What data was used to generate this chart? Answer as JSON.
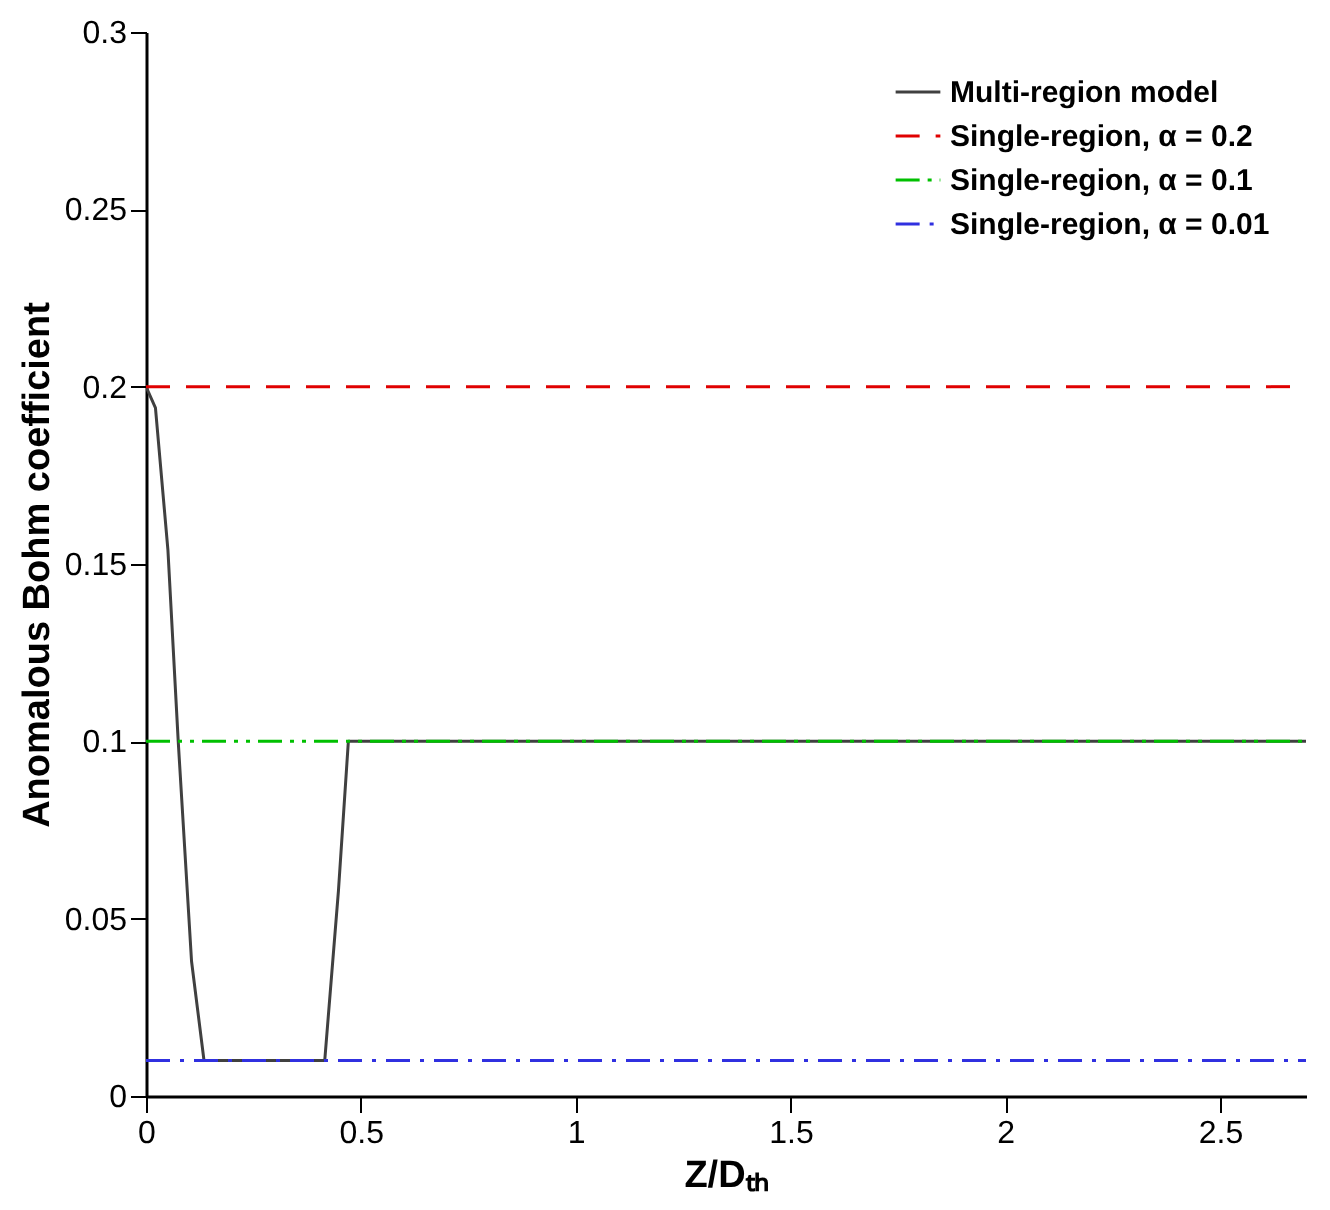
{
  "chart_data": {
    "type": "line",
    "xlabel": "Z/Dₜₕ",
    "ylabel": "Anomalous Bohm coefficient",
    "xlim": [
      0,
      2.7
    ],
    "ylim": [
      0,
      0.3
    ],
    "xticks": [
      0,
      0.5,
      1,
      1.5,
      2,
      2.5
    ],
    "yticks": [
      0,
      0.05,
      0.1,
      0.15,
      0.2,
      0.25,
      0.3
    ],
    "grid": false,
    "legend": "top right",
    "marker": "none",
    "series": [
      {
        "name": "Multi-region model",
        "color": "#404040",
        "line_style": "solid",
        "x": [
          0,
          0.022,
          0.051,
          0.075,
          0.106,
          0.135,
          0.416,
          0.448,
          0.471,
          2.7
        ],
        "values": [
          0.2,
          0.194,
          0.154,
          0.1,
          0.038,
          0.01,
          0.01,
          0.058,
          0.1,
          0.1
        ]
      },
      {
        "name": "Single-region, α = 0.2",
        "color": "#e00000",
        "line_style": "dashed",
        "x": [
          0,
          2.7
        ],
        "values": [
          0.2,
          0.2
        ]
      },
      {
        "name": "Single-region, α = 0.1",
        "color": "#00c000",
        "line_style": "dashdotdot",
        "x": [
          0,
          2.7
        ],
        "values": [
          0.1,
          0.1
        ]
      },
      {
        "name": "Single-region, α = 0.01",
        "color": "#3030e0",
        "line_style": "dashdot",
        "x": [
          0,
          2.7
        ],
        "values": [
          0.01,
          0.01
        ]
      }
    ]
  }
}
